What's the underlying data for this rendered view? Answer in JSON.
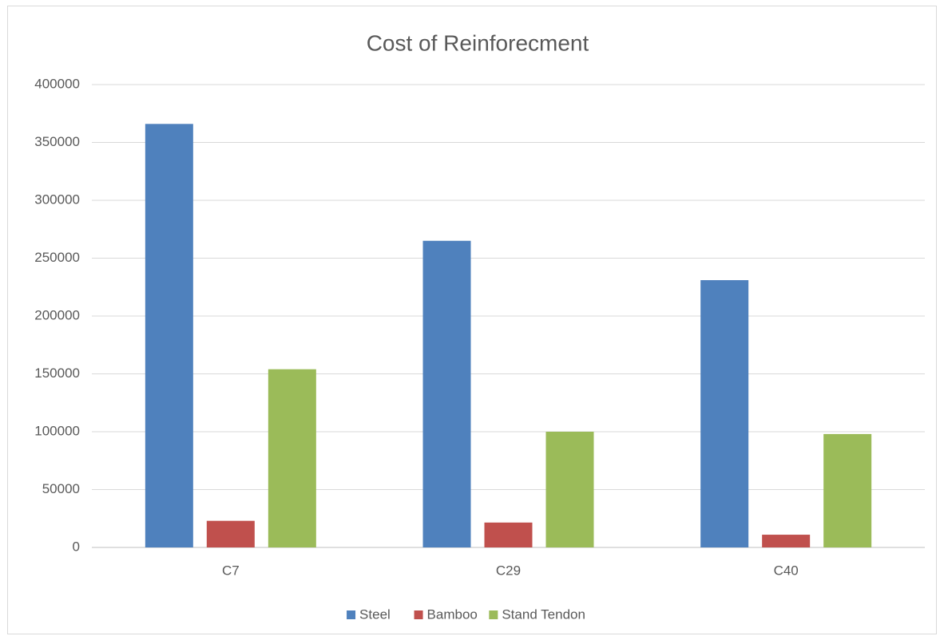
{
  "chart_data": {
    "type": "bar",
    "title": "Cost of Reinforecment",
    "categories": [
      "C7",
      "C29",
      "C40"
    ],
    "series": [
      {
        "name": "Steel",
        "color": "#4f81bd",
        "values": [
          366000,
          265000,
          231000
        ]
      },
      {
        "name": "Bamboo",
        "color": "#c0504d",
        "values": [
          23000,
          21500,
          11000
        ]
      },
      {
        "name": "Stand Tendon",
        "color": "#9bbb59",
        "values": [
          154000,
          100000,
          98000
        ]
      }
    ],
    "ylim": [
      0,
      400000
    ],
    "yticks": [
      0,
      50000,
      100000,
      150000,
      200000,
      250000,
      300000,
      350000,
      400000
    ],
    "grid": true,
    "legend": "bottom"
  }
}
